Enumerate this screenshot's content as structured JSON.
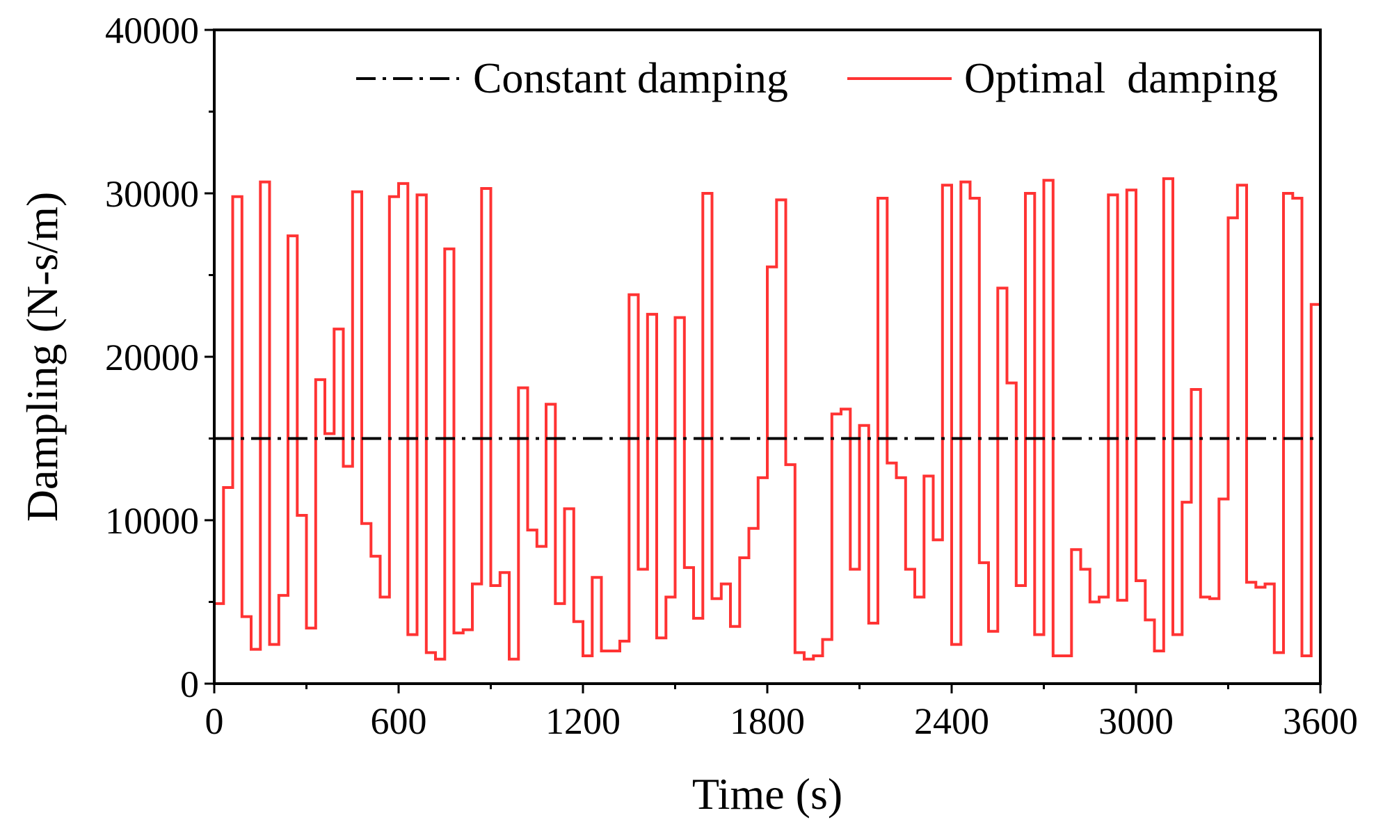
{
  "chart_data": {
    "type": "line",
    "title": "",
    "xlabel": "Time (s)",
    "ylabel": "Dampling (N-s/m)",
    "xlim": [
      0,
      3600
    ],
    "ylim": [
      0,
      40000
    ],
    "xticks": [
      0,
      600,
      1200,
      1800,
      2400,
      3000,
      3600
    ],
    "yticks": [
      0,
      10000,
      20000,
      30000,
      40000
    ],
    "x_tick_labels": [
      "0",
      "600",
      "1200",
      "1800",
      "2400",
      "3000",
      "3600"
    ],
    "y_tick_labels": [
      "0",
      "10000",
      "20000",
      "30000",
      "40000"
    ],
    "grid": false,
    "legend_position": "top-right",
    "series": [
      {
        "name": "Constant damping",
        "style": "dash-dot",
        "color": "#000000",
        "x": [
          0,
          3600
        ],
        "values": [
          15000,
          15000
        ]
      },
      {
        "name": "Optimal  damping",
        "style": "step",
        "color": "#ff3333",
        "step_seconds": 30,
        "values": [
          4900,
          12000,
          29800,
          4100,
          2100,
          30700,
          2400,
          5400,
          27400,
          10300,
          3400,
          18600,
          15300,
          21700,
          13300,
          30100,
          9800,
          7800,
          5300,
          29800,
          30600,
          3000,
          29900,
          1900,
          1500,
          26600,
          3100,
          3300,
          6100,
          30300,
          6000,
          6800,
          1500,
          18100,
          9400,
          8400,
          17100,
          4900,
          10700,
          3800,
          1700,
          6500,
          2000,
          2000,
          2600,
          23800,
          7000,
          22600,
          2800,
          5300,
          22400,
          7100,
          4000,
          30000,
          5200,
          6100,
          3500,
          7700,
          9500,
          12600,
          25500,
          29600,
          13400,
          1900,
          1500,
          1700,
          2700,
          16500,
          16800,
          7000,
          15800,
          3700,
          29700,
          13500,
          12600,
          7000,
          5300,
          12700,
          8800,
          30500,
          2400,
          30700,
          29700,
          7400,
          3200,
          24200,
          18400,
          6000,
          30000,
          3000,
          30800,
          1700,
          1700,
          8200,
          7000,
          5000,
          5300,
          29900,
          5100,
          30200,
          6300,
          3900,
          2000,
          30900,
          3000,
          11100,
          18000,
          5300,
          5200,
          11300,
          28500,
          30500,
          6200,
          5900,
          6100,
          1900,
          30000,
          29700,
          1700,
          23200
        ]
      }
    ]
  }
}
